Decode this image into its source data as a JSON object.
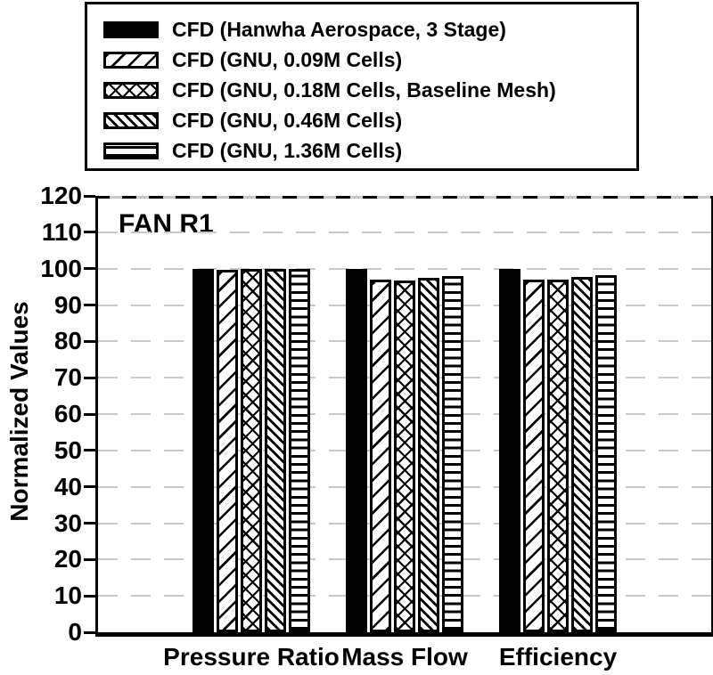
{
  "chart_data": {
    "type": "bar",
    "title": "FAN R1",
    "xlabel": "",
    "ylabel": "Normalized Values",
    "ylim": [
      0,
      120
    ],
    "ytick_step": 10,
    "grid": "horizontal dashed gray every 10",
    "legend_position": "top-outside boxed",
    "categories": [
      "Pressure Ratio",
      "Mass Flow",
      "Efficiency"
    ],
    "series": [
      {
        "name": "CFD (Hanwha Aerospace, 3 Stage)",
        "pattern": "solid-black",
        "values": [
          100,
          100,
          100
        ]
      },
      {
        "name": "CFD (GNU, 0.09M Cells)",
        "pattern": "diagonal-forward-hatch",
        "values": [
          99.7,
          96.9,
          96.9
        ]
      },
      {
        "name": "CFD (GNU, 0.18M Cells, Baseline Mesh)",
        "pattern": "crosshatch",
        "values": [
          99.8,
          96.8,
          96.9
        ]
      },
      {
        "name": "CFD (GNU, 0.46M Cells)",
        "pattern": "diagonal-back-dense-hatch",
        "values": [
          100,
          97.5,
          97.6
        ]
      },
      {
        "name": "CFD (GNU, 1.36M Cells)",
        "pattern": "horizontal-hatch",
        "values": [
          99.8,
          98.0,
          98.1
        ]
      }
    ],
    "colors": {
      "foreground": "#000000",
      "background": "#ffffff",
      "gridline": "#c9c9c9"
    }
  }
}
